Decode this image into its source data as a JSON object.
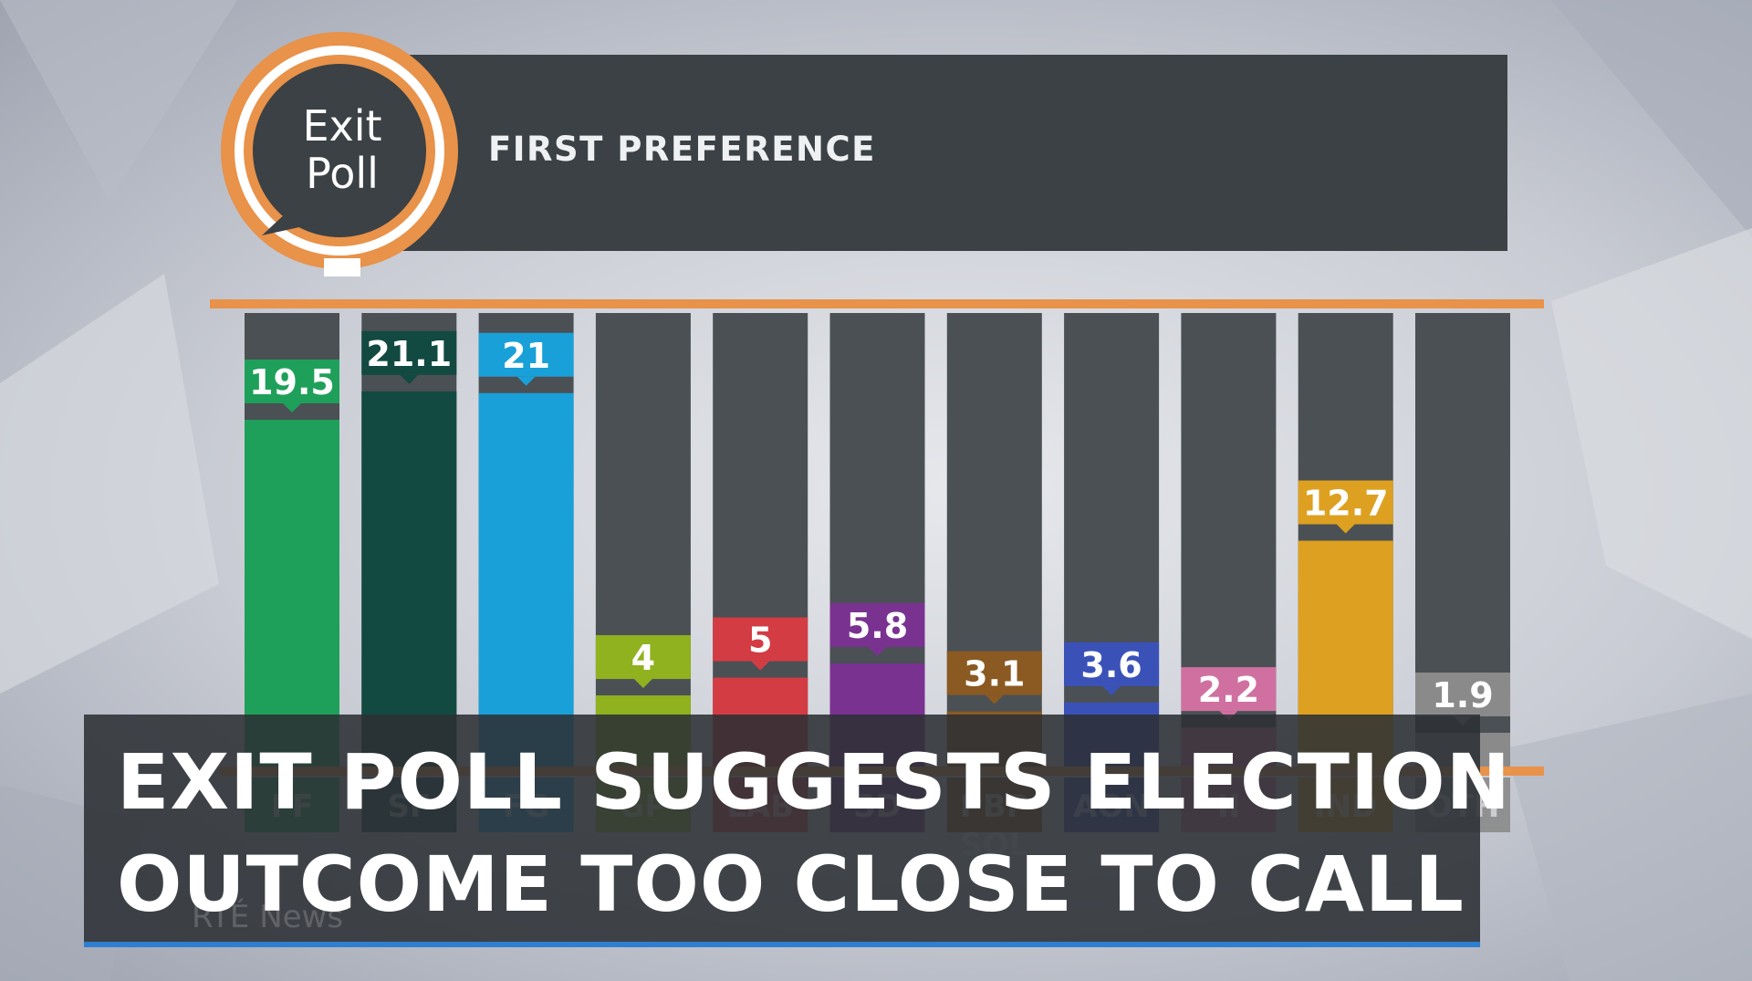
{
  "logo": {
    "line1": "Exit",
    "line2": "Poll"
  },
  "header": {
    "title": "FIRST PREFERENCE"
  },
  "headline": {
    "line1": "EXIT POLL SUGGESTS ELECTION",
    "line2": "OUTCOME TOO CLOSE TO CALL"
  },
  "watermark": "RTÉ News",
  "colors": {
    "accent_orange": "#e8924a",
    "headline_underline": "#2f7fd0",
    "panel": "#3b4144"
  },
  "chart_data": {
    "type": "bar",
    "title": "FIRST PREFERENCE",
    "categories": [
      "FF",
      "SF",
      "FG",
      "GP",
      "LAB",
      "SD",
      "PBP SOL",
      "AON",
      "II",
      "IND",
      "OTH"
    ],
    "values": [
      19.5,
      21.1,
      21,
      4,
      5,
      5.8,
      3.1,
      3.6,
      2.2,
      12.7,
      1.9
    ],
    "value_labels": [
      "19.5",
      "21.1",
      "21",
      "4",
      "5",
      "5.8",
      "3.1",
      "3.6",
      "2.2",
      "12.7",
      "1.9"
    ],
    "colors": [
      "#1fa05a",
      "#124a42",
      "#1aa0d8",
      "#8fb21e",
      "#d43c44",
      "#7a3290",
      "#8a5a22",
      "#3a52b8",
      "#d070a0",
      "#dda020",
      "#8a8a8a"
    ],
    "ylim": [
      0,
      26
    ],
    "grid": false,
    "legend": "none"
  }
}
